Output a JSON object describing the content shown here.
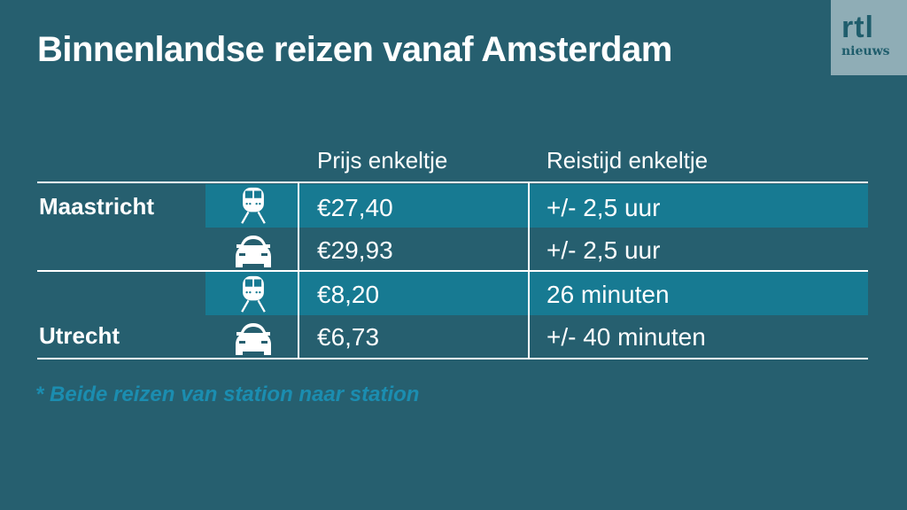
{
  "title": "Binnenlandse reizen vanaf Amsterdam",
  "logo": {
    "top": "rtl",
    "bottom": "nieuws"
  },
  "table": {
    "headers": [
      "Prijs enkeltje",
      "Reistijd enkeltje"
    ],
    "groups": [
      {
        "city": "Maastricht",
        "rows": [
          {
            "mode": "train-icon",
            "price": "€27,40",
            "time": "+/- 2,5 uur"
          },
          {
            "mode": "car-icon",
            "price": "€29,93",
            "time": "+/- 2,5 uur"
          }
        ]
      },
      {
        "city": "Utrecht",
        "rows": [
          {
            "mode": "train-icon",
            "price": "€8,20",
            "time": "26 minuten"
          },
          {
            "mode": "car-icon",
            "price": "€6,73",
            "time": "+/- 40 minuten"
          }
        ]
      }
    ]
  },
  "footnote": "* Beide reizen van station naar station",
  "colors": {
    "background": "#265f6f",
    "highlight": "#177a92",
    "footnote": "#1b8db0",
    "logo_bg": "#8fadb6"
  }
}
